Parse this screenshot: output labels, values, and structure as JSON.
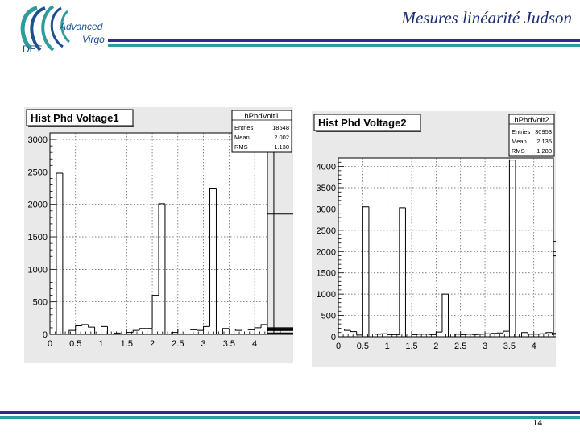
{
  "header": {
    "title": "Mesures linéarité Judson",
    "logo": {
      "line1": "Advanced",
      "line2": "Virgo",
      "line3": "DET"
    }
  },
  "footer": {
    "page_number": "14"
  },
  "colors": {
    "navy": "#2d2b8f",
    "teal": "#2f9b9b",
    "title": "#1f2f6f",
    "panel": "#e9e9e9"
  },
  "chart_data": [
    {
      "type": "bar",
      "title": "Hist Phd Voltage1",
      "stats": {
        "name": "hPhdVolt1",
        "rows": [
          {
            "label": "Entries",
            "value": "18548"
          },
          {
            "label": "Mean",
            "value": "2.002"
          },
          {
            "label": "RMS",
            "value": "1.130"
          }
        ]
      },
      "xlim": [
        0,
        4.25
      ],
      "ylim": [
        0,
        3100
      ],
      "x_ticks": [
        0,
        0.5,
        1,
        1.5,
        2,
        2.5,
        3,
        3.5,
        4
      ],
      "x_tick_labels": [
        "0",
        "0.5",
        "1",
        "1.5",
        "2",
        "2.5",
        "3",
        "3.5",
        "4"
      ],
      "y_ticks": [
        0,
        500,
        1000,
        1500,
        2000,
        2500,
        3000
      ],
      "y_tick_labels": [
        "0",
        "500",
        "1000",
        "1500",
        "2000",
        "2500",
        "3000"
      ],
      "grid": true,
      "bin_width": 0.125,
      "values": [
        0,
        2480,
        0,
        60,
        130,
        150,
        110,
        0,
        120,
        0,
        20,
        0,
        30,
        60,
        90,
        90,
        600,
        2010,
        0,
        30,
        80,
        80,
        70,
        60,
        120,
        2250,
        0,
        90,
        80,
        60,
        80,
        70,
        100,
        150,
        2900,
        0,
        60,
        70,
        60,
        70,
        60,
        80,
        100,
        60,
        20,
        0,
        0,
        0,
        20,
        80,
        90,
        1850,
        0
      ]
    },
    {
      "type": "bar",
      "title": "Hist Phd Voltage2",
      "stats": {
        "name": "hPhdVolt2",
        "rows": [
          {
            "label": "Entries",
            "value": "30953"
          },
          {
            "label": "Mean",
            "value": "2.135"
          },
          {
            "label": "RMS",
            "value": "1.288"
          }
        ]
      },
      "xlim": [
        0,
        4.4
      ],
      "ylim": [
        0,
        4200
      ],
      "x_ticks": [
        0,
        0.5,
        1,
        1.5,
        2,
        2.5,
        3,
        3.5,
        4
      ],
      "x_tick_labels": [
        "0",
        "0.5",
        "1",
        "1.5",
        "2",
        "2.5",
        "3",
        "3.5",
        "4"
      ],
      "y_ticks": [
        0,
        500,
        1000,
        1500,
        2000,
        2500,
        3000,
        3500,
        4000
      ],
      "y_tick_labels": [
        "0",
        "500",
        "1000",
        "1500",
        "2000",
        "2500",
        "3000",
        "3500",
        "4000"
      ],
      "grid": true,
      "bin_width": 0.125,
      "values": [
        180,
        150,
        120,
        40,
        3050,
        0,
        60,
        70,
        50,
        50,
        3030,
        0,
        50,
        60,
        60,
        50,
        110,
        1000,
        0,
        60,
        50,
        60,
        50,
        60,
        70,
        80,
        90,
        130,
        4150,
        0,
        100,
        60,
        60,
        70,
        100,
        50,
        80,
        60,
        2240,
        0,
        1900,
        0,
        2000,
        0,
        0
      ]
    }
  ]
}
